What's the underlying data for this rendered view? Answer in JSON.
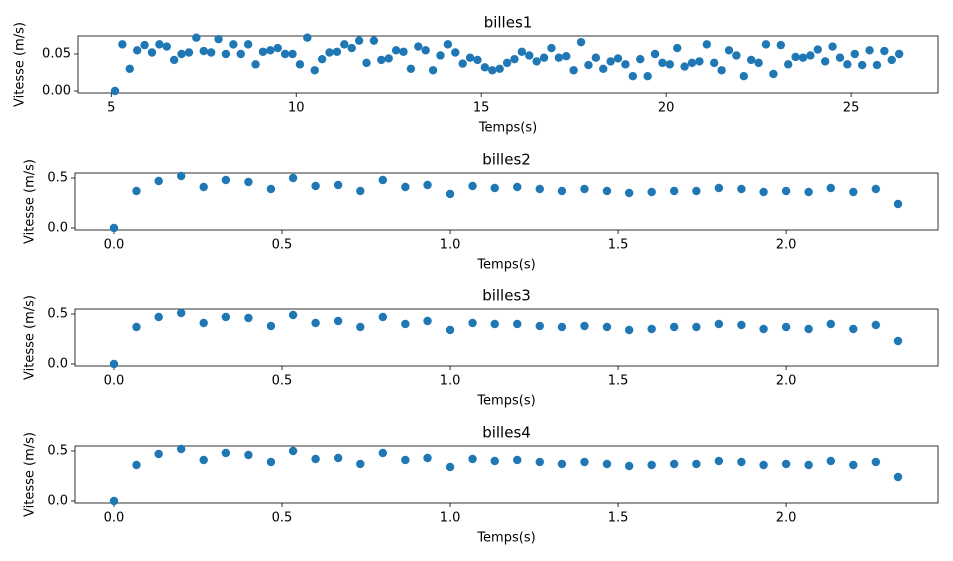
{
  "chart_data": [
    {
      "type": "scatter",
      "title": "billes1",
      "xlabel": "Temps(s)",
      "ylabel": "Vitesse (m/s)",
      "color": "#1f77b4",
      "x": [
        5.1,
        5.3,
        5.5,
        5.7,
        5.9,
        6.1,
        6.3,
        6.5,
        6.7,
        6.9,
        7.1,
        7.3,
        7.5,
        7.7,
        7.9,
        8.1,
        8.3,
        8.5,
        8.7,
        8.9,
        9.1,
        9.3,
        9.5,
        9.7,
        9.9,
        10.1,
        10.3,
        10.5,
        10.7,
        10.9,
        11.1,
        11.3,
        11.5,
        11.7,
        11.9,
        12.1,
        12.3,
        12.5,
        12.7,
        12.9,
        13.1,
        13.3,
        13.5,
        13.7,
        13.9,
        14.1,
        14.3,
        14.5,
        14.7,
        14.9,
        15.1,
        15.3,
        15.5,
        15.7,
        15.9,
        16.1,
        16.3,
        16.5,
        16.7,
        16.9,
        17.1,
        17.3,
        17.5,
        17.7,
        17.9,
        18.1,
        18.3,
        18.5,
        18.7,
        18.9,
        19.1,
        19.3,
        19.5,
        19.7,
        19.9,
        20.1,
        20.3,
        20.5,
        20.7,
        20.9,
        21.1,
        21.3,
        21.5,
        21.7,
        21.9,
        22.1,
        22.3,
        22.5,
        22.7,
        22.9,
        23.1,
        23.3,
        23.5,
        23.7,
        23.9,
        24.1,
        24.3,
        24.5,
        24.7,
        24.9,
        25.1,
        25.3,
        25.5,
        25.7,
        25.9,
        26.1,
        26.3
      ],
      "values": [
        0,
        0.063,
        0.03,
        0.055,
        0.062,
        0.052,
        0.063,
        0.06,
        0.042,
        0.05,
        0.052,
        0.072,
        0.054,
        0.052,
        0.07,
        0.05,
        0.063,
        0.05,
        0.063,
        0.036,
        0.053,
        0.055,
        0.058,
        0.05,
        0.05,
        0.036,
        0.072,
        0.028,
        0.043,
        0.052,
        0.053,
        0.063,
        0.058,
        0.068,
        0.038,
        0.068,
        0.042,
        0.044,
        0.055,
        0.053,
        0.03,
        0.06,
        0.055,
        0.028,
        0.048,
        0.063,
        0.052,
        0.037,
        0.045,
        0.042,
        0.032,
        0.028,
        0.03,
        0.038,
        0.043,
        0.053,
        0.048,
        0.04,
        0.045,
        0.058,
        0.045,
        0.047,
        0.028,
        0.066,
        0.035,
        0.045,
        0.03,
        0.04,
        0.044,
        0.036,
        0.02,
        0.043,
        0.02,
        0.05,
        0.038,
        0.036,
        0.058,
        0.033,
        0.038,
        0.04,
        0.063,
        0.038,
        0.028,
        0.055,
        0.048,
        0.02,
        0.042,
        0.038,
        0.063,
        0.023,
        0.062,
        0.036,
        0.046,
        0.045,
        0.048,
        0.056,
        0.04,
        0.06,
        0.045,
        0.036,
        0.05,
        0.035,
        0.055,
        0.035,
        0.054,
        0.042,
        0.05
      ],
      "xlim": [
        4.1,
        27.35
      ],
      "ylim": [
        -0.0027,
        0.0743
      ],
      "xticks": [
        5,
        10,
        15,
        20,
        25
      ],
      "yticks": [
        {
          "value": 0,
          "label": "0.00"
        },
        0.05
      ]
    },
    {
      "type": "scatter",
      "title": "billes2",
      "xlabel": "Temps(s)",
      "ylabel": "Vitesse (m/s)",
      "color": "#1f77b4",
      "x": [
        0,
        0.067,
        0.133,
        0.2,
        0.267,
        0.333,
        0.4,
        0.467,
        0.533,
        0.6,
        0.667,
        0.733,
        0.8,
        0.867,
        0.933,
        1.0,
        1.067,
        1.133,
        1.2,
        1.267,
        1.333,
        1.4,
        1.467,
        1.533,
        1.6,
        1.667,
        1.733,
        1.8,
        1.867,
        1.933,
        2.0,
        2.067,
        2.133,
        2.2,
        2.267,
        2.333
      ],
      "values": [
        0,
        0.37,
        0.47,
        0.52,
        0.41,
        0.48,
        0.46,
        0.39,
        0.5,
        0.42,
        0.43,
        0.37,
        0.48,
        0.41,
        0.43,
        0.34,
        0.42,
        0.4,
        0.41,
        0.39,
        0.37,
        0.39,
        0.37,
        0.35,
        0.36,
        0.37,
        0.37,
        0.4,
        0.39,
        0.36,
        0.37,
        0.36,
        0.4,
        0.36,
        0.39,
        0.24
      ],
      "xlim": [
        -0.116,
        2.452
      ],
      "ylim": [
        -0.02,
        0.55
      ],
      "xticks": [
        {
          "value": 0,
          "label": "0.0"
        },
        0.5,
        {
          "value": 1,
          "label": "1.0"
        },
        1.5,
        {
          "value": 2,
          "label": "2.0"
        }
      ],
      "yticks": [
        {
          "value": 0,
          "label": "0.0"
        },
        0.5
      ]
    },
    {
      "type": "scatter",
      "title": "billes3",
      "xlabel": "Temps(s)",
      "ylabel": "Vitesse (m/s)",
      "color": "#1f77b4",
      "x": [
        0,
        0.067,
        0.133,
        0.2,
        0.267,
        0.333,
        0.4,
        0.467,
        0.533,
        0.6,
        0.667,
        0.733,
        0.8,
        0.867,
        0.933,
        1.0,
        1.067,
        1.133,
        1.2,
        1.267,
        1.333,
        1.4,
        1.467,
        1.533,
        1.6,
        1.667,
        1.733,
        1.8,
        1.867,
        1.933,
        2.0,
        2.067,
        2.133,
        2.2,
        2.267,
        2.333
      ],
      "values": [
        0,
        0.37,
        0.47,
        0.51,
        0.41,
        0.47,
        0.46,
        0.38,
        0.49,
        0.41,
        0.43,
        0.37,
        0.47,
        0.4,
        0.43,
        0.34,
        0.41,
        0.4,
        0.4,
        0.38,
        0.37,
        0.38,
        0.37,
        0.34,
        0.35,
        0.37,
        0.37,
        0.4,
        0.39,
        0.35,
        0.37,
        0.35,
        0.4,
        0.35,
        0.39,
        0.23
      ],
      "xlim": [
        -0.116,
        2.452
      ],
      "ylim": [
        -0.02,
        0.55
      ],
      "xticks": [
        {
          "value": 0,
          "label": "0.0"
        },
        0.5,
        {
          "value": 1,
          "label": "1.0"
        },
        1.5,
        {
          "value": 2,
          "label": "2.0"
        }
      ],
      "yticks": [
        {
          "value": 0,
          "label": "0.0"
        },
        0.5
      ]
    },
    {
      "type": "scatter",
      "title": "billes4",
      "xlabel": "Temps(s)",
      "ylabel": "Vitesse (m/s)",
      "color": "#1f77b4",
      "x": [
        0,
        0.067,
        0.133,
        0.2,
        0.267,
        0.333,
        0.4,
        0.467,
        0.533,
        0.6,
        0.667,
        0.733,
        0.8,
        0.867,
        0.933,
        1.0,
        1.067,
        1.133,
        1.2,
        1.267,
        1.333,
        1.4,
        1.467,
        1.533,
        1.6,
        1.667,
        1.733,
        1.8,
        1.867,
        1.933,
        2.0,
        2.067,
        2.133,
        2.2,
        2.267,
        2.333
      ],
      "values": [
        0,
        0.36,
        0.47,
        0.52,
        0.41,
        0.48,
        0.46,
        0.39,
        0.5,
        0.42,
        0.43,
        0.37,
        0.48,
        0.41,
        0.43,
        0.34,
        0.42,
        0.4,
        0.41,
        0.39,
        0.37,
        0.39,
        0.37,
        0.35,
        0.36,
        0.37,
        0.37,
        0.4,
        0.39,
        0.36,
        0.37,
        0.36,
        0.4,
        0.36,
        0.39,
        0.24
      ],
      "xlim": [
        -0.116,
        2.452
      ],
      "ylim": [
        -0.02,
        0.55
      ],
      "xticks": [
        {
          "value": 0,
          "label": "0.0"
        },
        0.5,
        {
          "value": 1,
          "label": "1.0"
        },
        1.5,
        {
          "value": 2,
          "label": "2.0"
        }
      ],
      "yticks": [
        {
          "value": 0,
          "label": "0.0"
        },
        0.5
      ]
    }
  ]
}
